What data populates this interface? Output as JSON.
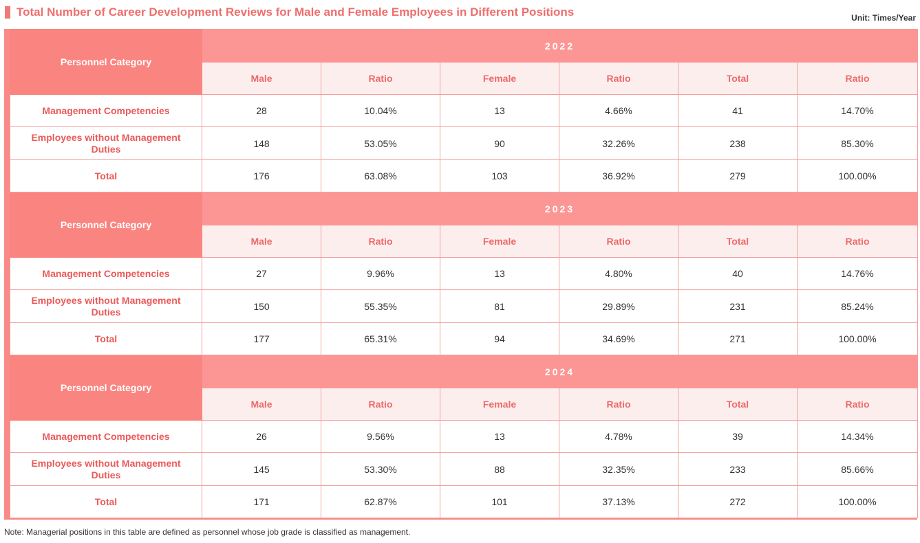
{
  "title": "Total Number of Career Development Reviews for Male and Female Employees in Different Positions",
  "unit": "Unit: Times/Year",
  "category_header": "Personnel Category",
  "columns": [
    "Male",
    "Ratio",
    "Female",
    "Ratio",
    "Total",
    "Ratio"
  ],
  "years": [
    {
      "year": "2022",
      "rows": [
        {
          "label": "Management Competencies",
          "cells": [
            "28",
            "10.04%",
            "13",
            "4.66%",
            "41",
            "14.70%"
          ]
        },
        {
          "label": "Employees without Management Duties",
          "cells": [
            "148",
            "53.05%",
            "90",
            "32.26%",
            "238",
            "85.30%"
          ]
        },
        {
          "label": "Total",
          "cells": [
            "176",
            "63.08%",
            "103",
            "36.92%",
            "279",
            "100.00%"
          ]
        }
      ]
    },
    {
      "year": "2023",
      "rows": [
        {
          "label": "Management Competencies",
          "cells": [
            "27",
            "9.96%",
            "13",
            "4.80%",
            "40",
            "14.76%"
          ]
        },
        {
          "label": "Employees without Management Duties",
          "cells": [
            "150",
            "55.35%",
            "81",
            "29.89%",
            "231",
            "85.24%"
          ]
        },
        {
          "label": "Total",
          "cells": [
            "177",
            "65.31%",
            "94",
            "34.69%",
            "271",
            "100.00%"
          ]
        }
      ]
    },
    {
      "year": "2024",
      "rows": [
        {
          "label": "Management Competencies",
          "cells": [
            "26",
            "9.56%",
            "13",
            "4.78%",
            "39",
            "14.34%"
          ]
        },
        {
          "label": "Employees without Management Duties",
          "cells": [
            "145",
            "53.30%",
            "88",
            "32.35%",
            "233",
            "85.66%"
          ]
        },
        {
          "label": "Total",
          "cells": [
            "171",
            "62.87%",
            "101",
            "37.13%",
            "272",
            "100.00%"
          ]
        }
      ]
    }
  ],
  "note": "Note: Managerial positions in this table are defined as personnel whose job grade is classified as management.",
  "colors": {
    "accent": "#ee6f6d",
    "header_bg": "#fa8480",
    "year_bg": "#fc9695",
    "subhead_bg": "#fdeeee"
  }
}
